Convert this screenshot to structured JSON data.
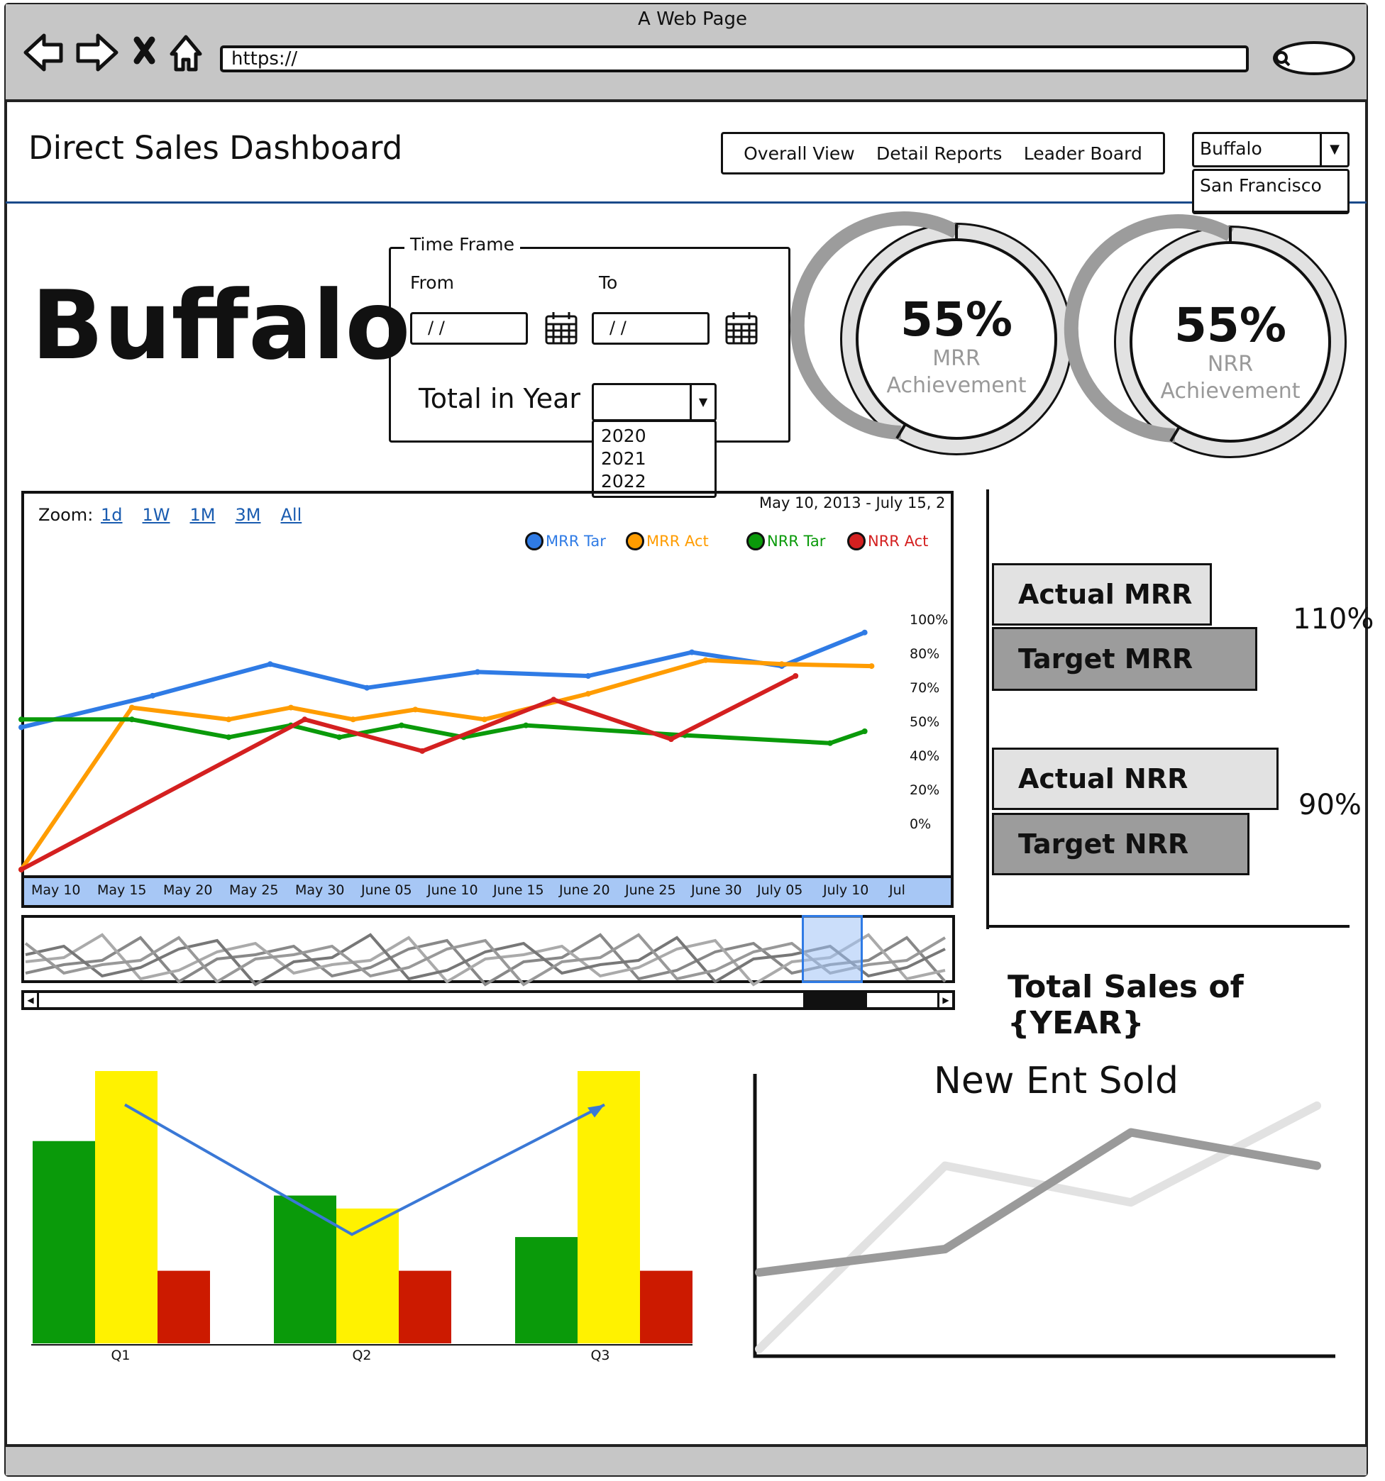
{
  "browser": {
    "window_title": "A Web Page",
    "url": "https://"
  },
  "header": {
    "page_title": "Direct Sales Dashboard",
    "nav": [
      {
        "label": "Overall View"
      },
      {
        "label": "Detail Reports"
      },
      {
        "label": "Leader Board"
      }
    ],
    "city_select": {
      "value": "Buffalo",
      "options": [
        "San Francisco"
      ]
    }
  },
  "city_heading": "Buffalo",
  "time_frame": {
    "legend": "Time Frame",
    "from_label": "From",
    "to_label": "To",
    "from_value": "/ /",
    "to_value": "/ /",
    "total_label": "Total in Year",
    "year_options": [
      "2020",
      "2021",
      "2022"
    ]
  },
  "gauges": [
    {
      "value": "55%",
      "line1": "MRR",
      "line2": "Achievement"
    },
    {
      "value": "55%",
      "line1": "NRR",
      "line2": "Achievement"
    }
  ],
  "main_chart": {
    "zoom_label": "Zoom:",
    "zoom_options": [
      "1d",
      "1W",
      "1M",
      "3M",
      "All"
    ],
    "date_range": "May 10, 2013 - July 15, 2",
    "legend": [
      {
        "name": "MRR Tar",
        "color": "#2f7be5"
      },
      {
        "name": "MRR Act",
        "color": "#ff9c00"
      },
      {
        "name": "NRR Tar",
        "color": "#0a9a0a"
      },
      {
        "name": "NRR Act",
        "color": "#d42020"
      }
    ],
    "y_ticks": [
      "100%",
      "80%",
      "70%",
      "50%",
      "40%",
      "20%",
      "0%"
    ],
    "x_ticks": [
      "May 10",
      "May 15",
      "May 20",
      "May 25",
      "May 30",
      "June 05",
      "June 10",
      "June 15",
      "June 20",
      "June 25",
      "June 30",
      "July 05",
      "July 10",
      "Jul"
    ]
  },
  "chart_data": [
    {
      "type": "line",
      "title": "",
      "x": [
        "May 10",
        "May 15",
        "May 20",
        "May 25",
        "May 30",
        "June 05",
        "June 10",
        "June 15",
        "June 20",
        "June 25",
        "June 30",
        "July 05",
        "July 10",
        "Jul"
      ],
      "y_ticks": [
        "0%",
        "20%",
        "40%",
        "50%",
        "70%",
        "80%",
        "100%"
      ],
      "series": [
        {
          "name": "MRR Tar",
          "points": [
            [
              0,
              3.6
            ],
            [
              1.9,
              4.4
            ],
            [
              3.6,
              5.2
            ],
            [
              5.0,
              4.6
            ],
            [
              6.6,
              5.0
            ],
            [
              8.2,
              4.9
            ],
            [
              9.7,
              5.5
            ],
            [
              11.0,
              5.15
            ],
            [
              12.2,
              6.0
            ]
          ]
        },
        {
          "name": "MRR Act",
          "points": [
            [
              0,
              0
            ],
            [
              1.6,
              4.1
            ],
            [
              3.0,
              3.8
            ],
            [
              3.9,
              4.1
            ],
            [
              4.8,
              3.8
            ],
            [
              5.7,
              4.05
            ],
            [
              6.7,
              3.8
            ],
            [
              8.2,
              4.45
            ],
            [
              9.9,
              5.3
            ],
            [
              11.0,
              5.2
            ],
            [
              12.3,
              5.15
            ]
          ]
        },
        {
          "name": "NRR Tar",
          "points": [
            [
              0,
              3.8
            ],
            [
              1.6,
              3.8
            ],
            [
              3.0,
              3.35
            ],
            [
              3.9,
              3.65
            ],
            [
              4.6,
              3.35
            ],
            [
              5.5,
              3.65
            ],
            [
              6.4,
              3.35
            ],
            [
              7.3,
              3.65
            ],
            [
              9.6,
              3.4
            ],
            [
              11.7,
              3.2
            ],
            [
              12.2,
              3.5
            ]
          ]
        },
        {
          "name": "NRR Act",
          "points": [
            [
              0,
              0
            ],
            [
              4.1,
              3.8
            ],
            [
              5.8,
              3.0
            ],
            [
              7.7,
              4.3
            ],
            [
              9.4,
              3.3
            ],
            [
              11.2,
              4.9
            ]
          ]
        }
      ]
    },
    {
      "type": "bar",
      "title": "Total Sales of {YEAR}",
      "categories": [
        "Actual MRR",
        "Target MRR",
        "Actual NRR",
        "Target NRR"
      ],
      "values": [
        100,
        110,
        90,
        100
      ],
      "annotations": [
        "110%",
        "90%"
      ]
    },
    {
      "type": "bar",
      "title": "",
      "categories": [
        "Q1",
        "Q2",
        "Q3"
      ],
      "series": [
        {
          "color": "#0a9a0a",
          "values": [
            78,
            57,
            41
          ]
        },
        {
          "color": "#fff200",
          "values": [
            105,
            52,
            105
          ]
        },
        {
          "color": "#cc1a00",
          "values": [
            28,
            28,
            28
          ]
        }
      ],
      "trend": [
        92,
        42,
        92
      ],
      "ylim": [
        0,
        105
      ]
    },
    {
      "type": "line",
      "title": "New Ent Sold",
      "x": [
        0,
        1,
        2,
        3
      ],
      "series": [
        {
          "color": "#9a9a9a",
          "values": [
            2.3,
            3.0,
            6.5,
            5.5
          ]
        },
        {
          "color": "#e2e2e2",
          "values": [
            0.0,
            5.5,
            4.4,
            7.3
          ]
        }
      ],
      "ylim": [
        0,
        8
      ]
    }
  ],
  "totals": {
    "title": "Total Sales of {YEAR}",
    "bars": [
      {
        "label": "Actual MRR"
      },
      {
        "label": "Target MRR"
      },
      {
        "label": "Actual NRR"
      },
      {
        "label": "Target NRR"
      }
    ],
    "pcts": [
      "110%",
      "90%"
    ]
  },
  "quarter_chart": {
    "labels": [
      "Q1",
      "Q2",
      "Q3"
    ]
  },
  "ent_chart": {
    "title": "New Ent Sold"
  },
  "colors": {
    "chrome": "#c6c6c6",
    "header_rule": "#1a4a8a",
    "timeline_band": "#a7c7f5",
    "timeline_handle": "#cfe0f8"
  }
}
